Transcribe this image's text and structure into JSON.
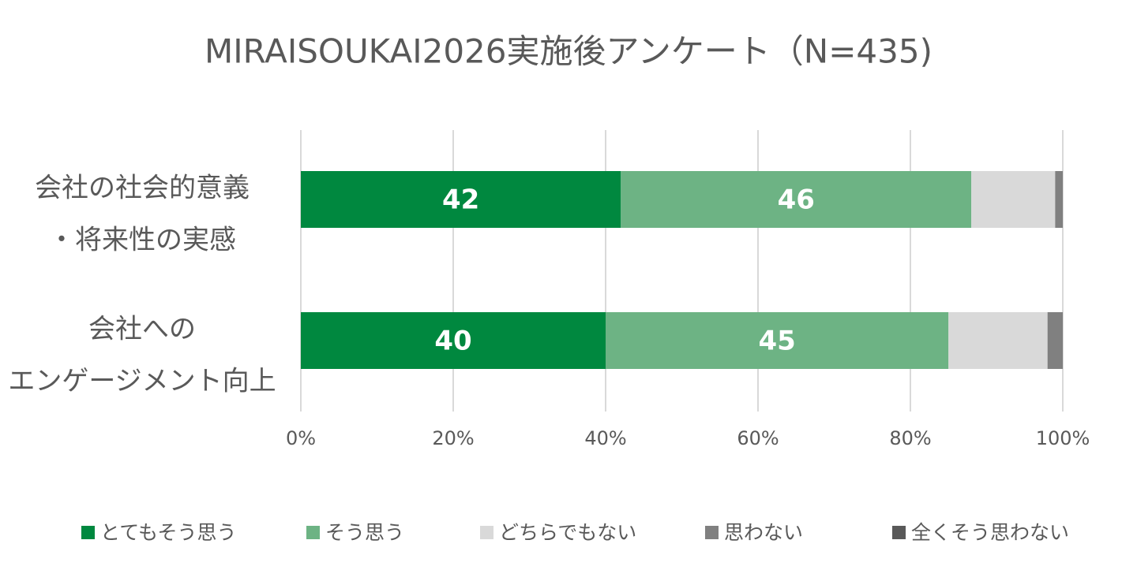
{
  "chart_data": {
    "type": "stacked-bar-horizontal",
    "title": "MIRAISOUKAI2026実施後アンケート（N=435)",
    "categories": [
      [
        "会社の社会的意義",
        "・将来性の実感"
      ],
      [
        "会社への",
        "エンゲージメント向上"
      ]
    ],
    "series": [
      {
        "name": "とてもそう思う",
        "color": "#00883f",
        "values": [
          42,
          40
        ],
        "data_labels": true
      },
      {
        "name": "そう思う",
        "color": "#6db384",
        "values": [
          46,
          45
        ],
        "data_labels": true
      },
      {
        "name": "どちらでもない",
        "color": "#d9d9d9",
        "values": [
          11,
          13
        ],
        "data_labels": false
      },
      {
        "name": "思わない",
        "color": "#808080",
        "values": [
          1,
          2
        ],
        "data_labels": false
      },
      {
        "name": "全くそう思わない",
        "color": "#595959",
        "values": [
          0,
          0
        ],
        "data_labels": false
      }
    ],
    "xlim": [
      0,
      100
    ],
    "xticks": [
      {
        "value": 0,
        "label": "0%"
      },
      {
        "value": 20,
        "label": "20%"
      },
      {
        "value": 40,
        "label": "40%"
      },
      {
        "value": 60,
        "label": "60%"
      },
      {
        "value": 80,
        "label": "80%"
      },
      {
        "value": 100,
        "label": "100%"
      }
    ],
    "grid": true,
    "legend": "bottom"
  }
}
